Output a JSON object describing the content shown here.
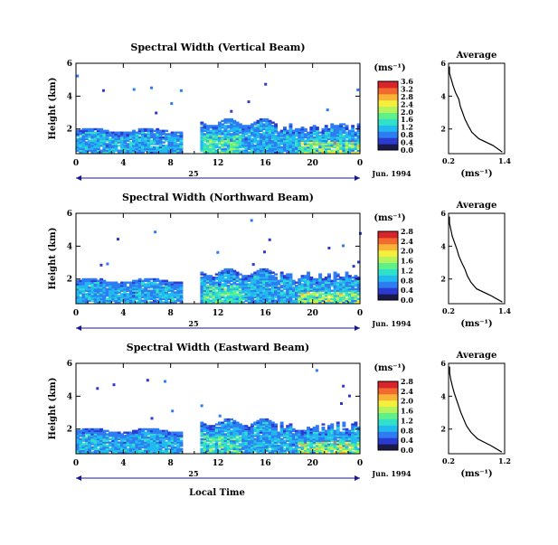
{
  "x_label": "Local Time",
  "date_label": "Jun. 1994",
  "day_label": "25",
  "height_label": "Height (km)",
  "unit_label": "(ms⁻¹)",
  "average_title": "Average",
  "avg_xlabel": "(ms⁻¹)",
  "colormap": [
    "#1a1a4a",
    "#2b3bd1",
    "#2d7cf2",
    "#22b8f0",
    "#31e0c8",
    "#5ef08a",
    "#b6f25a",
    "#f3ef3c",
    "#f9b338",
    "#f36a2f",
    "#d8242a"
  ],
  "chart_data": [
    {
      "type": "heatmap",
      "title": "Spectral Width (Vertical Beam)",
      "xlabel": "Local Time",
      "ylabel": "Height (km)",
      "xlim": [
        0,
        24
      ],
      "ylim": [
        0.5,
        6
      ],
      "xticks": [
        "0",
        "4",
        "8",
        "12",
        "16",
        "20",
        "0"
      ],
      "yticks": [
        "2",
        "4",
        "6"
      ],
      "data_gap_hours": [
        9,
        10.5
      ],
      "colorbar": {
        "label": "(ms⁻¹)",
        "ticks": [
          "0.0",
          "0.4",
          "0.8",
          "1.2",
          "1.6",
          "2.0",
          "2.4",
          "2.8",
          "3.2",
          "3.6"
        ]
      },
      "average_profile": {
        "title": "Average",
        "xlabel": "(ms⁻¹)",
        "xticks": [
          "0.2",
          "1.4"
        ],
        "yticks": [
          "2",
          "4",
          "6"
        ],
        "xlim": [
          0.2,
          1.4
        ],
        "ylim": [
          0.5,
          6
        ],
        "height": [
          0.6,
          1.0,
          1.4,
          1.8,
          2.2,
          2.6,
          3.0,
          3.4,
          3.8,
          4.2,
          4.6,
          5.0,
          5.4,
          5.8
        ],
        "width": [
          1.35,
          1.15,
          0.85,
          0.7,
          0.62,
          0.55,
          0.5,
          0.45,
          0.42,
          0.35,
          0.3,
          0.26,
          0.22,
          0.22
        ]
      }
    },
    {
      "type": "heatmap",
      "title": "Spectral Width (Northward Beam)",
      "xlabel": "Local Time",
      "ylabel": "Height (km)",
      "xlim": [
        0,
        24
      ],
      "ylim": [
        0.5,
        6
      ],
      "xticks": [
        "0",
        "4",
        "8",
        "12",
        "16",
        "20",
        "0"
      ],
      "yticks": [
        "2",
        "4",
        "6"
      ],
      "data_gap_hours": [
        9,
        10.5
      ],
      "colorbar": {
        "label": "(ms⁻¹)",
        "ticks": [
          "0.0",
          "0.4",
          "0.8",
          "1.2",
          "1.6",
          "2.0",
          "2.4",
          "2.8"
        ]
      },
      "average_profile": {
        "title": "Average",
        "xlabel": "(ms⁻¹)",
        "xticks": [
          "0.2",
          "1.4"
        ],
        "yticks": [
          "2",
          "4",
          "6"
        ],
        "xlim": [
          0.2,
          1.4
        ],
        "ylim": [
          0.5,
          6
        ],
        "height": [
          0.6,
          1.0,
          1.4,
          1.8,
          2.2,
          2.6,
          3.0,
          3.4,
          3.8,
          4.2,
          4.6,
          5.0,
          5.4,
          5.8
        ],
        "width": [
          1.35,
          1.1,
          0.8,
          0.68,
          0.6,
          0.55,
          0.48,
          0.42,
          0.38,
          0.33,
          0.28,
          0.25,
          0.22,
          0.22
        ]
      }
    },
    {
      "type": "heatmap",
      "title": "Spectral Width (Eastward Beam)",
      "xlabel": "Local Time",
      "ylabel": "Height (km)",
      "xlim": [
        0,
        24
      ],
      "ylim": [
        0.5,
        6
      ],
      "xticks": [
        "0",
        "4",
        "8",
        "12",
        "16",
        "20",
        "0"
      ],
      "yticks": [
        "2",
        "4",
        "6"
      ],
      "data_gap_hours": [
        9,
        10.5
      ],
      "colorbar": {
        "label": "(ms⁻¹)",
        "ticks": [
          "0.0",
          "0.4",
          "0.8",
          "1.2",
          "1.6",
          "2.0",
          "2.4",
          "2.8"
        ]
      },
      "average_profile": {
        "title": "Average",
        "xlabel": "(ms⁻¹)",
        "xticks": [
          "0.2",
          "1.2"
        ],
        "yticks": [
          "2",
          "4",
          "6"
        ],
        "xlim": [
          0.2,
          1.2
        ],
        "ylim": [
          0.5,
          6
        ],
        "height": [
          0.6,
          1.0,
          1.4,
          1.8,
          2.2,
          2.6,
          3.0,
          3.4,
          3.8,
          4.2,
          4.6,
          5.0,
          5.4,
          5.8
        ],
        "width": [
          1.15,
          0.95,
          0.72,
          0.6,
          0.52,
          0.47,
          0.42,
          0.38,
          0.34,
          0.3,
          0.27,
          0.24,
          0.22,
          0.22
        ]
      }
    }
  ]
}
